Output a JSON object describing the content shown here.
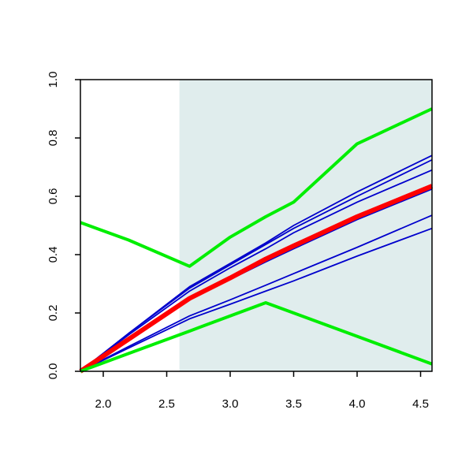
{
  "chart_data": {
    "type": "line",
    "x": [
      1.82,
      2.2,
      2.68,
      3.0,
      3.28,
      3.5,
      4.0,
      4.59
    ],
    "series": [
      {
        "color": "#0000cc",
        "values": [
          0,
          0.13,
          0.29,
          0.37,
          0.44,
          0.5,
          0.615,
          0.74
        ]
      },
      {
        "color": "#0000cc",
        "values": [
          0,
          0.13,
          0.285,
          0.365,
          0.435,
          0.49,
          0.6,
          0.725
        ]
      },
      {
        "color": "#0000cc",
        "values": [
          0,
          0.125,
          0.275,
          0.355,
          0.42,
          0.475,
          0.58,
          0.69
        ]
      },
      {
        "color": "#0000cc",
        "values": [
          0,
          0.105,
          0.245,
          0.315,
          0.375,
          0.42,
          0.52,
          0.625
        ]
      },
      {
        "color": "#0000cc",
        "values": [
          0,
          0.085,
          0.19,
          0.245,
          0.295,
          0.335,
          0.425,
          0.535
        ]
      },
      {
        "color": "#0000cc",
        "values": [
          0,
          0.08,
          0.18,
          0.23,
          0.275,
          0.31,
          0.395,
          0.49
        ]
      },
      {
        "color": "#ff0000",
        "values": [
          0,
          0.11,
          0.25,
          0.32,
          0.385,
          0.43,
          0.53,
          0.635
        ]
      },
      {
        "color": "#00ee00",
        "values": [
          0.51,
          0.45,
          0.36,
          0.46,
          0.53,
          0.58,
          0.78,
          0.9
        ]
      },
      {
        "color": "#00ee00",
        "values": [
          0,
          0.061,
          0.138,
          0.19,
          0.235,
          0.2,
          0.12,
          0.025
        ]
      }
    ],
    "shade_from": 2.6,
    "shade_color": "#e0eded",
    "xlim": [
      1.82,
      4.59
    ],
    "ylim": [
      0,
      1
    ],
    "xticks": [
      {
        "value": 2,
        "label": "2.0"
      },
      2.5,
      {
        "value": 3,
        "label": "3.0"
      },
      3.5,
      {
        "value": 4,
        "label": "4.0"
      },
      4.5
    ],
    "yticks": [
      {
        "value": 0,
        "label": "0.0"
      },
      0.2,
      0.4,
      0.6,
      0.8,
      {
        "value": 1,
        "label": "1.0"
      }
    ]
  }
}
